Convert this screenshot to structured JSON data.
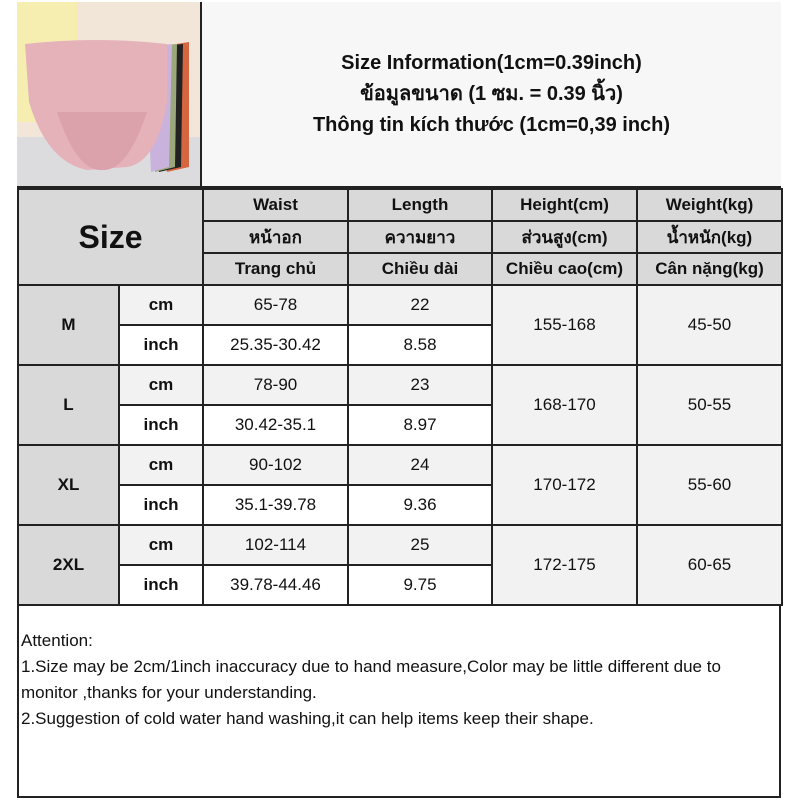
{
  "title": {
    "line1": "Size Information(1cm=0.39inch)",
    "line2": "ข้อมูลขนาด (1 ซม. = 0.39 นิ้ว)",
    "line3": "Thông tin kích thước (1cm=0,39 inch)"
  },
  "header": {
    "size": "Size",
    "columns": [
      [
        "Waist",
        "หน้าอก",
        "Trang chủ"
      ],
      [
        "Length",
        "ความยาว",
        "Chiều dài"
      ],
      [
        "Height(cm)",
        "ส่วนสูง(cm)",
        "Chiều cao(cm)"
      ],
      [
        "Weight(kg)",
        "น้ำหนัก(kg)",
        "Cân nặng(kg)"
      ]
    ]
  },
  "units": {
    "cm": "cm",
    "inch": "inch"
  },
  "rows": [
    {
      "size": "M",
      "waist_cm": "65-78",
      "length_cm": "22",
      "waist_in": "25.35-30.42",
      "length_in": "8.58",
      "height": "155-168",
      "weight": "45-50"
    },
    {
      "size": "L",
      "waist_cm": "78-90",
      "length_cm": "23",
      "waist_in": "30.42-35.1",
      "length_in": "8.97",
      "height": "168-170",
      "weight": "50-55"
    },
    {
      "size": "XL",
      "waist_cm": "90-102",
      "length_cm": "24",
      "waist_in": "35.1-39.78",
      "length_in": "9.36",
      "height": "170-172",
      "weight": "55-60"
    },
    {
      "size": "2XL",
      "waist_cm": "102-114",
      "length_cm": "25",
      "waist_in": "39.78-44.46",
      "length_in": "9.75",
      "height": "172-175",
      "weight": "60-65"
    }
  ],
  "notes": {
    "heading": "Attention:",
    "items": [
      "1.Size may be 2cm/1inch inaccuracy due to hand measure,Color may be little different due to monitor ,thanks for your understanding.",
      "2.Suggestion of cold water hand washing,it can help items keep their shape."
    ]
  },
  "colors": {
    "header_bg": "#d9d9d9",
    "light_bg": "#f2f2f2",
    "product_pink": "#e8b4bd"
  }
}
